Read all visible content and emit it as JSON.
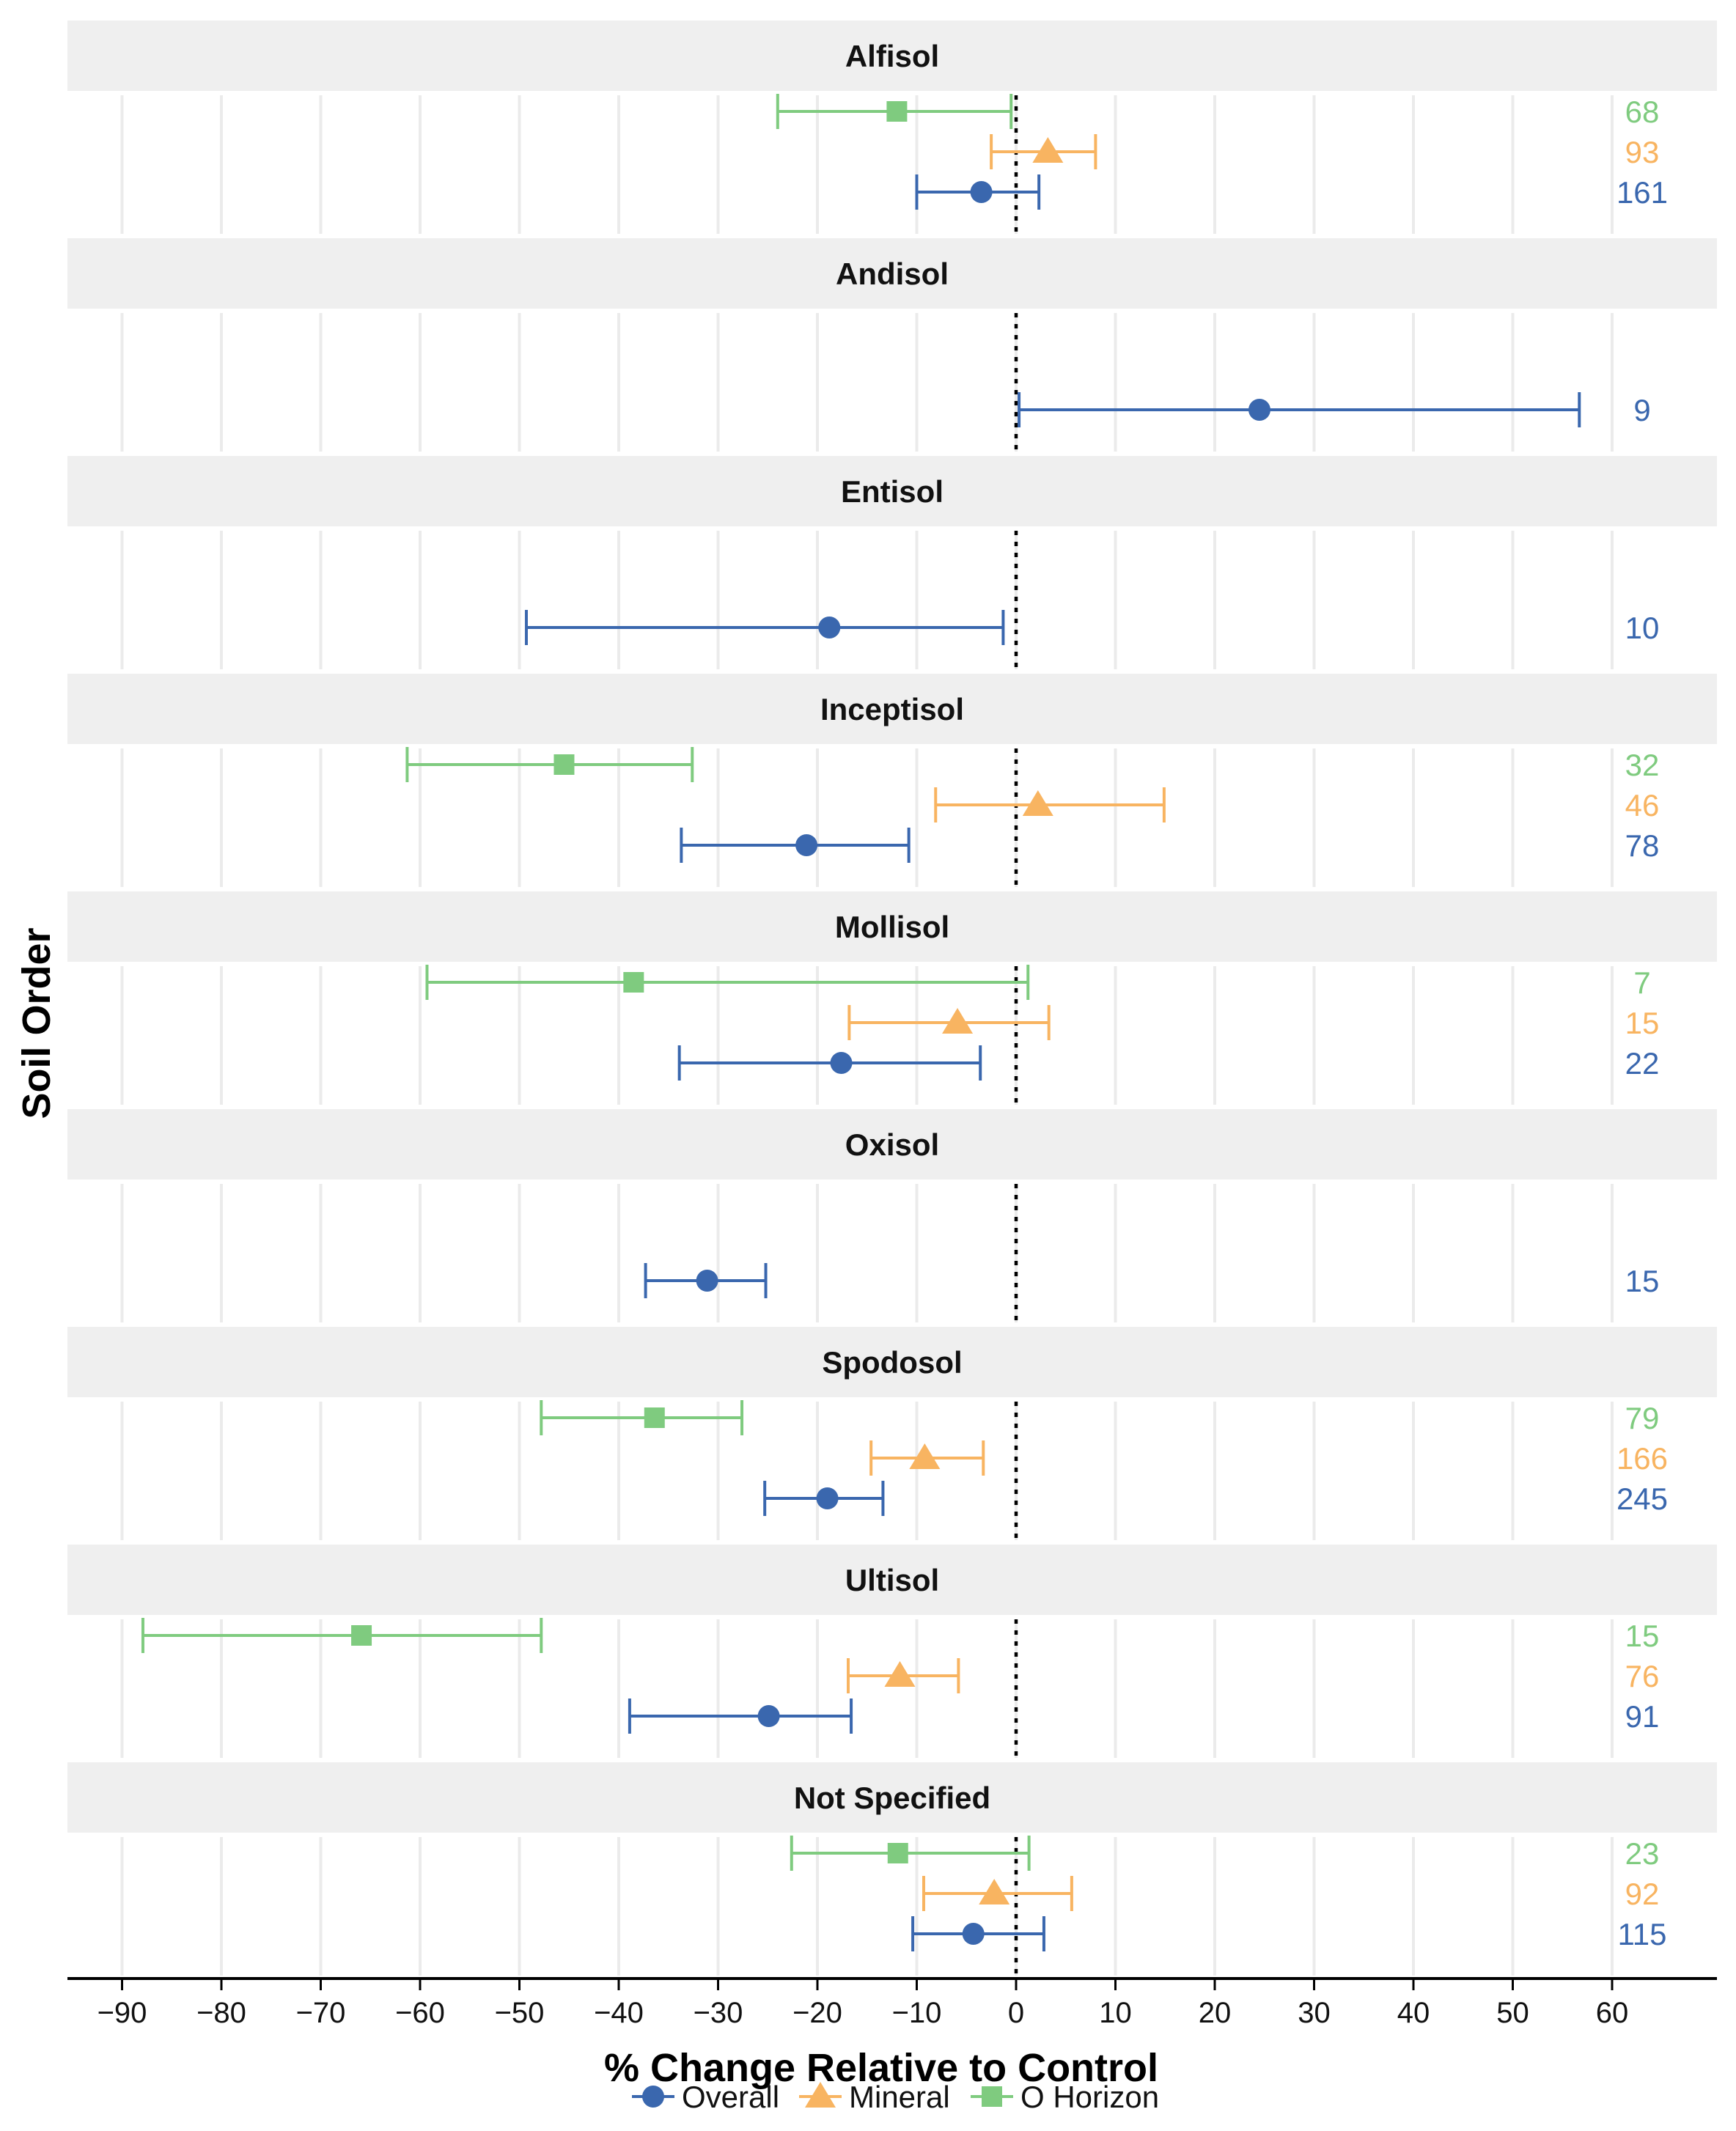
{
  "chart_data": {
    "type": "forest",
    "title": "",
    "xlabel": "% Change Relative to Control",
    "ylabel": "Soil Order",
    "xlim": [
      -95,
      70
    ],
    "xticks": [
      -90,
      -80,
      -70,
      -60,
      -50,
      -40,
      -30,
      -20,
      -10,
      0,
      10,
      20,
      30,
      40,
      50,
      60
    ],
    "xtick_labels": [
      "−90",
      "−80",
      "−70",
      "−60",
      "−50",
      "−40",
      "−30",
      "−20",
      "−10",
      "0",
      "10",
      "20",
      "30",
      "40",
      "50",
      "60"
    ],
    "reference_line": 0,
    "legend": [
      {
        "name": "Overall",
        "color": "#3a67ae",
        "marker": "circle"
      },
      {
        "name": "Mineral",
        "color": "#f8b461",
        "marker": "triangle"
      },
      {
        "name": "O Horizon",
        "color": "#7fcb7f",
        "marker": "square"
      }
    ],
    "panels": [
      {
        "label": "Alfisol",
        "rows": [
          {
            "series": "O Horizon",
            "estimate": -12,
            "lower": -24,
            "upper": -0.5,
            "n": "68"
          },
          {
            "series": "Mineral",
            "estimate": 3.2,
            "lower": -2.5,
            "upper": 8,
            "n": "93"
          },
          {
            "series": "Overall",
            "estimate": -3.5,
            "lower": -10,
            "upper": 2.3,
            "n": "161"
          }
        ]
      },
      {
        "label": "Andisol",
        "rows": [
          {
            "series": "Overall",
            "estimate": 24.5,
            "lower": 0.3,
            "upper": 56.7,
            "n": "9"
          }
        ]
      },
      {
        "label": "Entisol",
        "rows": [
          {
            "series": "Overall",
            "estimate": -18.8,
            "lower": -49.3,
            "upper": -1.3,
            "n": "10"
          }
        ]
      },
      {
        "label": "Inceptisol",
        "rows": [
          {
            "series": "O Horizon",
            "estimate": -45.5,
            "lower": -61.3,
            "upper": -32.6,
            "n": "32"
          },
          {
            "series": "Mineral",
            "estimate": 2.2,
            "lower": -8.1,
            "upper": 14.9,
            "n": "46"
          },
          {
            "series": "Overall",
            "estimate": -21.1,
            "lower": -33.7,
            "upper": -10.8,
            "n": "78"
          }
        ]
      },
      {
        "label": "Mollisol",
        "rows": [
          {
            "series": "O Horizon",
            "estimate": -38.5,
            "lower": -59.3,
            "upper": 1.2,
            "n": "7"
          },
          {
            "series": "Mineral",
            "estimate": -5.9,
            "lower": -16.8,
            "upper": 3.3,
            "n": "15"
          },
          {
            "series": "Overall",
            "estimate": -17.6,
            "lower": -33.9,
            "upper": -3.6,
            "n": "22"
          }
        ]
      },
      {
        "label": "Oxisol",
        "rows": [
          {
            "series": "Overall",
            "estimate": -31.1,
            "lower": -37.3,
            "upper": -25.2,
            "n": "15"
          }
        ]
      },
      {
        "label": "Spodosol",
        "rows": [
          {
            "series": "O Horizon",
            "estimate": -36.4,
            "lower": -47.8,
            "upper": -27.6,
            "n": "79"
          },
          {
            "series": "Mineral",
            "estimate": -9.2,
            "lower": -14.6,
            "upper": -3.3,
            "n": "166"
          },
          {
            "series": "Overall",
            "estimate": -19,
            "lower": -25.3,
            "upper": -13.4,
            "n": "245"
          }
        ]
      },
      {
        "label": "Ultisol",
        "rows": [
          {
            "series": "O Horizon",
            "estimate": -65.9,
            "lower": -87.9,
            "upper": -47.8,
            "n": "15"
          },
          {
            "series": "Mineral",
            "estimate": -11.7,
            "lower": -16.9,
            "upper": -5.8,
            "n": "76"
          },
          {
            "series": "Overall",
            "estimate": -24.9,
            "lower": -38.9,
            "upper": -16.6,
            "n": "91"
          }
        ]
      },
      {
        "label": "Not Specified",
        "rows": [
          {
            "series": "O Horizon",
            "estimate": -11.9,
            "lower": -22.6,
            "upper": 1.3,
            "n": "23"
          },
          {
            "series": "Mineral",
            "estimate": -2.2,
            "lower": -9.3,
            "upper": 5.6,
            "n": "92"
          },
          {
            "series": "Overall",
            "estimate": -4.3,
            "lower": -10.4,
            "upper": 2.8,
            "n": "115"
          }
        ]
      }
    ]
  }
}
